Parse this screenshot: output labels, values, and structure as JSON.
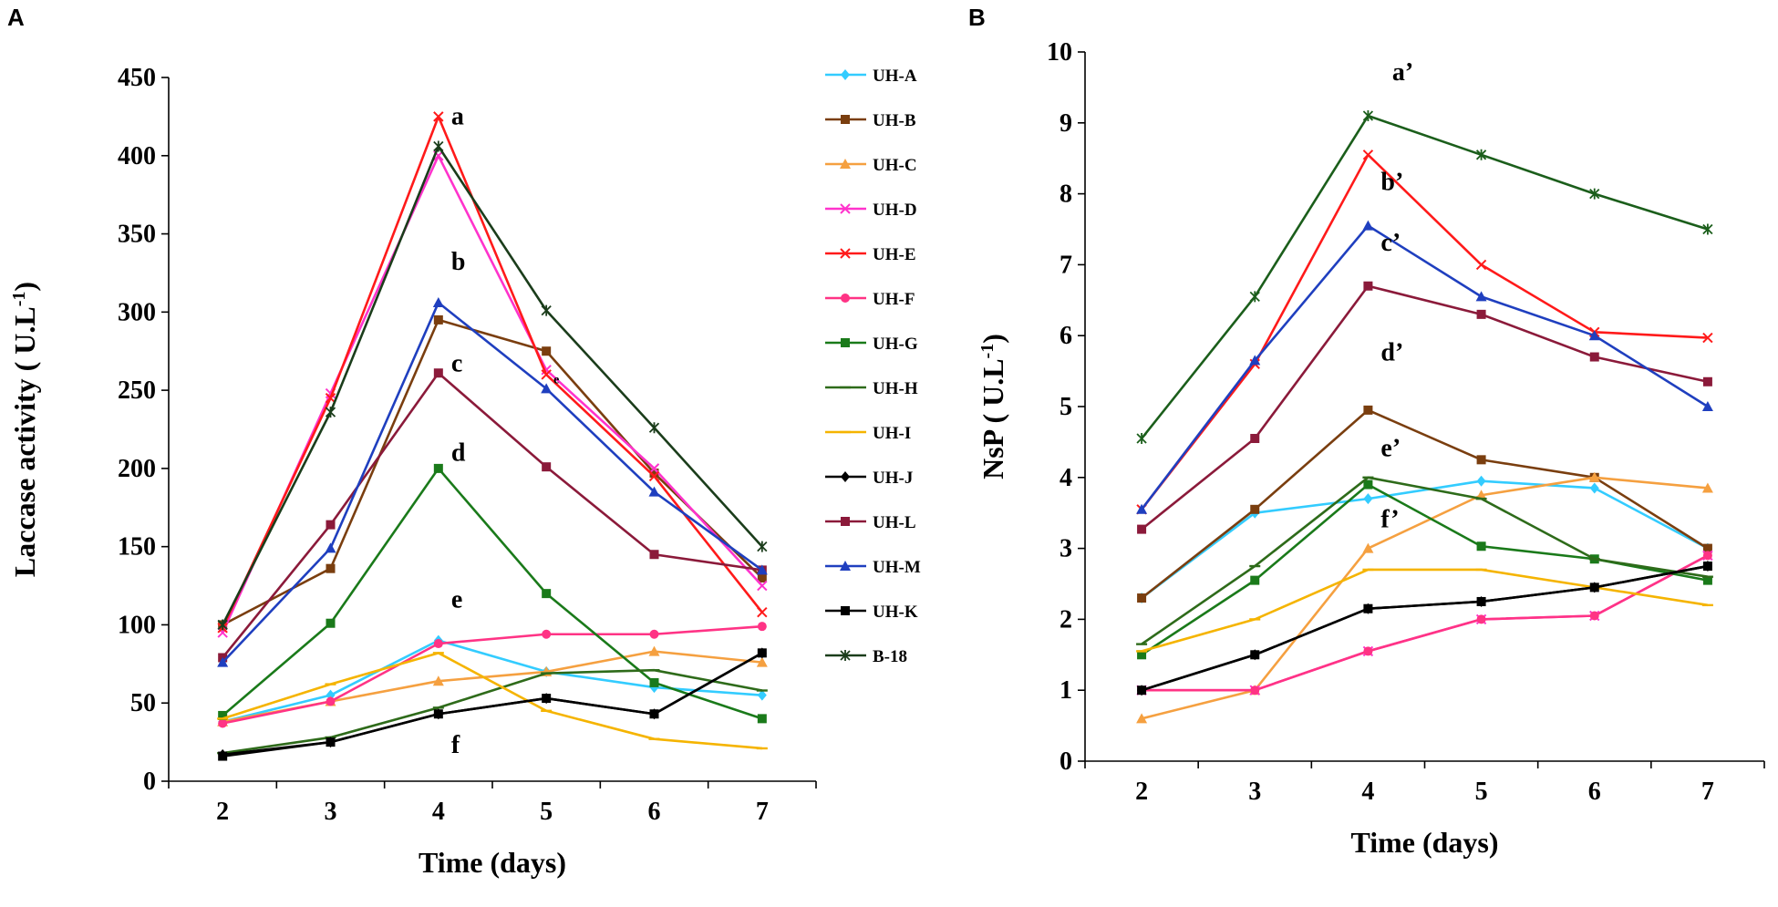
{
  "chart_data": [
    {
      "type": "line",
      "panel": "A",
      "title": "",
      "xlabel": "Time (days)",
      "ylabel": "Laccase activity (U.L-1)",
      "ylabel_main": "Laccase activity ( U.L",
      "ylabel_sup": "-1",
      "ylabel_end": ")",
      "x": [
        2,
        3,
        4,
        5,
        6,
        7
      ],
      "xlim": [
        1.5,
        7.5
      ],
      "ylim": [
        0,
        450
      ],
      "yticks": [
        0,
        50,
        100,
        150,
        200,
        250,
        300,
        350,
        400,
        450
      ],
      "legend_position": "right",
      "series": [
        {
          "name": "UH-A",
          "color": "#33ccff",
          "marker": "diamond",
          "values": [
            38,
            55,
            90,
            70,
            60,
            55
          ]
        },
        {
          "name": "UH-B",
          "color": "#7a3e0f",
          "marker": "square",
          "values": [
            100,
            136,
            295,
            275,
            197,
            130
          ]
        },
        {
          "name": "UH-C",
          "color": "#f5a040",
          "marker": "triangle",
          "values": [
            38,
            51,
            64,
            70,
            83,
            76
          ]
        },
        {
          "name": "UH-D",
          "color": "#ff33cc",
          "marker": "x",
          "values": [
            95,
            248,
            400,
            263,
            200,
            125
          ]
        },
        {
          "name": "UH-E",
          "color": "#ff1a1a",
          "marker": "x",
          "values": [
            98,
            245,
            425,
            260,
            195,
            108
          ]
        },
        {
          "name": "UH-F",
          "color": "#ff3385",
          "marker": "circle",
          "values": [
            37,
            51,
            88,
            94,
            94,
            99
          ]
        },
        {
          "name": "UH-G",
          "color": "#1a7a1a",
          "marker": "square",
          "values": [
            42,
            101,
            200,
            120,
            63,
            40
          ]
        },
        {
          "name": "UH-H",
          "color": "#2e6b1a",
          "marker": "dash",
          "values": [
            18,
            28,
            47,
            69,
            71,
            58
          ]
        },
        {
          "name": "UH-I",
          "color": "#f5b400",
          "marker": "dash",
          "values": [
            40,
            62,
            82,
            45,
            27,
            21
          ]
        },
        {
          "name": "UH-J",
          "color": "#000000",
          "marker": "diamond",
          "values": [
            17,
            25,
            43,
            53,
            43,
            82
          ]
        },
        {
          "name": "UH-L",
          "color": "#8b1a3a",
          "marker": "square",
          "values": [
            79,
            164,
            261,
            201,
            145,
            135
          ]
        },
        {
          "name": "UH-M",
          "color": "#1f3fbf",
          "marker": "triangle",
          "values": [
            76,
            149,
            306,
            251,
            185,
            135
          ]
        },
        {
          "name": "UH-K",
          "color": "#000000",
          "marker": "square",
          "values": [
            16,
            25,
            43,
            53,
            43,
            82
          ]
        },
        {
          "name": "B-18",
          "color": "#1b3d1b",
          "marker": "star",
          "values": [
            100,
            236,
            406,
            301,
            226,
            150
          ]
        }
      ],
      "annotations": [
        {
          "text": "a",
          "x": 4,
          "y": 420
        },
        {
          "text": "b",
          "x": 4,
          "y": 327
        },
        {
          "text": "c",
          "x": 4,
          "y": 262
        },
        {
          "text": "d",
          "x": 4,
          "y": 205
        },
        {
          "text": "e",
          "x": 4,
          "y": 111
        },
        {
          "text": "f",
          "x": 4,
          "y": 18
        }
      ],
      "annotations_small": [
        {
          "text": "e",
          "x": 5,
          "y": 251
        }
      ]
    },
    {
      "type": "line",
      "panel": "B",
      "title": "",
      "xlabel": "Time (days)",
      "ylabel": "NsP (U.L-1)",
      "ylabel_main": "NsP ( U.L",
      "ylabel_sup": "-1",
      "ylabel_end": ")",
      "x": [
        2,
        3,
        4,
        5,
        6,
        7
      ],
      "xlim": [
        1.5,
        7.5
      ],
      "ylim": [
        0,
        10
      ],
      "yticks": [
        0,
        1,
        2,
        3,
        4,
        5,
        6,
        7,
        8,
        9,
        10
      ],
      "series": [
        {
          "name": "UH-A",
          "color": "#33ccff",
          "marker": "diamond",
          "values": [
            2.3,
            3.5,
            3.7,
            3.95,
            3.85,
            3.0
          ]
        },
        {
          "name": "UH-B",
          "color": "#7a3e0f",
          "marker": "square",
          "values": [
            2.3,
            3.55,
            4.95,
            4.25,
            4.0,
            3.0
          ]
        },
        {
          "name": "UH-C",
          "color": "#f5a040",
          "marker": "triangle",
          "values": [
            0.6,
            1.0,
            3.0,
            3.75,
            4.0,
            3.85
          ]
        },
        {
          "name": "UH-D",
          "color": "#ff33cc",
          "marker": "x",
          "values": [
            1.0,
            1.0,
            1.55,
            2.0,
            2.05,
            2.9
          ]
        },
        {
          "name": "UH-E",
          "color": "#ff1a1a",
          "marker": "x",
          "values": [
            3.55,
            5.6,
            8.55,
            7.0,
            6.05,
            5.97
          ]
        },
        {
          "name": "UH-F",
          "color": "#ff3385",
          "marker": "circle",
          "values": [
            1.0,
            1.0,
            1.55,
            2.0,
            2.05,
            2.9
          ]
        },
        {
          "name": "UH-G",
          "color": "#1a7a1a",
          "marker": "square",
          "values": [
            1.5,
            2.55,
            3.9,
            3.03,
            2.85,
            2.55
          ]
        },
        {
          "name": "UH-H",
          "color": "#2e6b1a",
          "marker": "dash",
          "values": [
            1.65,
            2.75,
            4.0,
            3.7,
            2.85,
            2.6
          ]
        },
        {
          "name": "UH-I",
          "color": "#f5b400",
          "marker": "dash",
          "values": [
            1.55,
            2.0,
            2.7,
            2.7,
            2.45,
            2.2
          ]
        },
        {
          "name": "UH-J",
          "color": "#000000",
          "marker": "diamond",
          "values": [
            1.0,
            1.5,
            2.15,
            2.25,
            2.45,
            2.75
          ]
        },
        {
          "name": "UH-L",
          "color": "#8b1a3a",
          "marker": "square",
          "values": [
            3.27,
            4.55,
            6.7,
            6.3,
            5.7,
            5.35
          ]
        },
        {
          "name": "UH-M",
          "color": "#1f3fbf",
          "marker": "triangle",
          "values": [
            3.55,
            5.65,
            7.55,
            6.55,
            6.0,
            5.0
          ]
        },
        {
          "name": "UH-K",
          "color": "#000000",
          "marker": "square",
          "values": [
            1.0,
            1.5,
            2.15,
            2.25,
            2.45,
            2.75
          ]
        },
        {
          "name": "B-18",
          "color": "#1b5e1b",
          "marker": "star",
          "values": [
            4.55,
            6.55,
            9.1,
            8.55,
            8.0,
            7.5
          ]
        }
      ],
      "annotations": [
        {
          "text": "a’",
          "x": 4.1,
          "y": 9.6
        },
        {
          "text": "b’",
          "x": 4.0,
          "y": 8.05
        },
        {
          "text": "c’",
          "x": 4.0,
          "y": 7.2
        },
        {
          "text": "d’",
          "x": 4.0,
          "y": 5.65
        },
        {
          "text": "e’",
          "x": 4.0,
          "y": 4.3
        },
        {
          "text": "f’",
          "x": 4.0,
          "y": 3.3
        }
      ]
    }
  ]
}
